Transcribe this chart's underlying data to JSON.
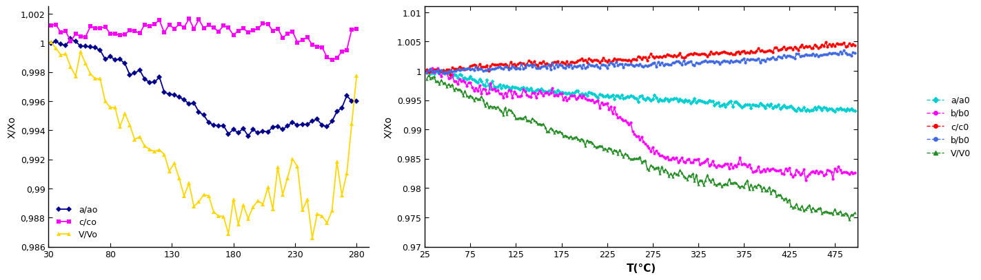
{
  "left": {
    "xlim": [
      30,
      290
    ],
    "ylim": [
      0.986,
      1.0025
    ],
    "xticks": [
      30,
      80,
      130,
      180,
      230,
      280
    ],
    "ytick_vals": [
      0.986,
      0.988,
      0.99,
      0.992,
      0.994,
      0.996,
      0.998,
      1.0,
      1.002
    ],
    "ytick_labels": [
      "0,986",
      "0,988",
      "0,99",
      "0,992",
      "0,994",
      "0,996",
      "0,998",
      "1",
      "1,002"
    ],
    "ylabel": "X/Xo",
    "series": [
      {
        "label": "a/ao",
        "color": "#00008B",
        "marker": "D"
      },
      {
        "label": "c/co",
        "color": "#FF00FF",
        "marker": "s"
      },
      {
        "label": "V/Vo",
        "color": "#FFD700",
        "marker": "^"
      }
    ]
  },
  "right": {
    "xlim": [
      25,
      500
    ],
    "ylim": [
      0.97,
      1.011
    ],
    "xticks": [
      25,
      75,
      125,
      175,
      225,
      275,
      325,
      375,
      425,
      475
    ],
    "ytick_vals": [
      0.97,
      0.975,
      0.98,
      0.985,
      0.99,
      0.995,
      1.0,
      1.005,
      1.01
    ],
    "ytick_labels": [
      "0.97",
      "0.975",
      "0.98",
      "0.985",
      "0.99",
      "0.995",
      "1",
      "1.005",
      "1.01"
    ],
    "xlabel": "T(°C)",
    "ylabel": "X/Xo",
    "series": [
      {
        "label": "a/a0",
        "color": "#00CED1",
        "marker": "D"
      },
      {
        "label": "b/b0",
        "color": "#FF00FF",
        "marker": "o"
      },
      {
        "label": "c/c0",
        "color": "#FF0000",
        "marker": "o"
      },
      {
        "label": "b/b0",
        "color": "#4169E1",
        "marker": "o"
      },
      {
        "label": "V/V0",
        "color": "#228B22",
        "marker": "^"
      }
    ]
  }
}
